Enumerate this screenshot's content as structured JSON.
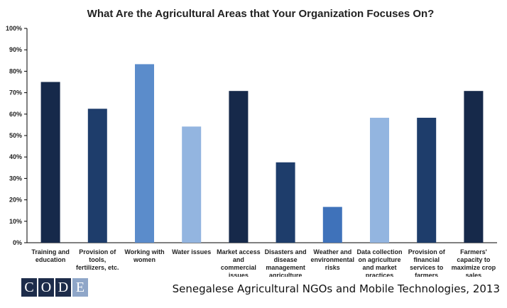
{
  "chart_data": {
    "type": "bar",
    "title": "What Are the Agricultural Areas that Your Organization Focuses On?",
    "categories": [
      [
        "Training and",
        "education"
      ],
      [
        "Provision of",
        "tools,",
        "fertilizers, etc."
      ],
      [
        "Working with",
        "women"
      ],
      [
        "Water issues"
      ],
      [
        "Market access",
        "and",
        "commercial",
        "issues"
      ],
      [
        "Disasters and",
        "disease",
        "management",
        "agriculture"
      ],
      [
        "Weather and",
        "environmental",
        "risks"
      ],
      [
        "Data collection",
        "on agriculture",
        "and market",
        "practices"
      ],
      [
        "Provision of",
        "financial",
        "services to",
        "farmers"
      ],
      [
        "Farmers'",
        "capacity to",
        "maximize crop",
        "sales"
      ]
    ],
    "values": [
      75,
      62.5,
      83.3,
      54.2,
      70.8,
      37.5,
      16.7,
      58.3,
      58.3,
      70.8
    ],
    "bar_colors": [
      "#16294a",
      "#1e3d6b",
      "#5b8ccb",
      "#93b5e0",
      "#16294a",
      "#1e3d6b",
      "#3f72ba",
      "#93b5e0",
      "#1e3d6b",
      "#16294a"
    ],
    "ylim": [
      0,
      100
    ],
    "yticks": [
      "0%",
      "10%",
      "20%",
      "30%",
      "40%",
      "50%",
      "60%",
      "70%",
      "80%",
      "90%",
      "100%"
    ],
    "grid": false
  },
  "logo": {
    "letters": [
      "C",
      "O",
      "D",
      "E"
    ],
    "colors": [
      "#1d2c4a",
      "#1d2c4a",
      "#1d2c4a",
      "#8fa6c8"
    ]
  },
  "footer": {
    "text": "Senegalese Agricultural NGOs and Mobile Technologies, 2013"
  }
}
